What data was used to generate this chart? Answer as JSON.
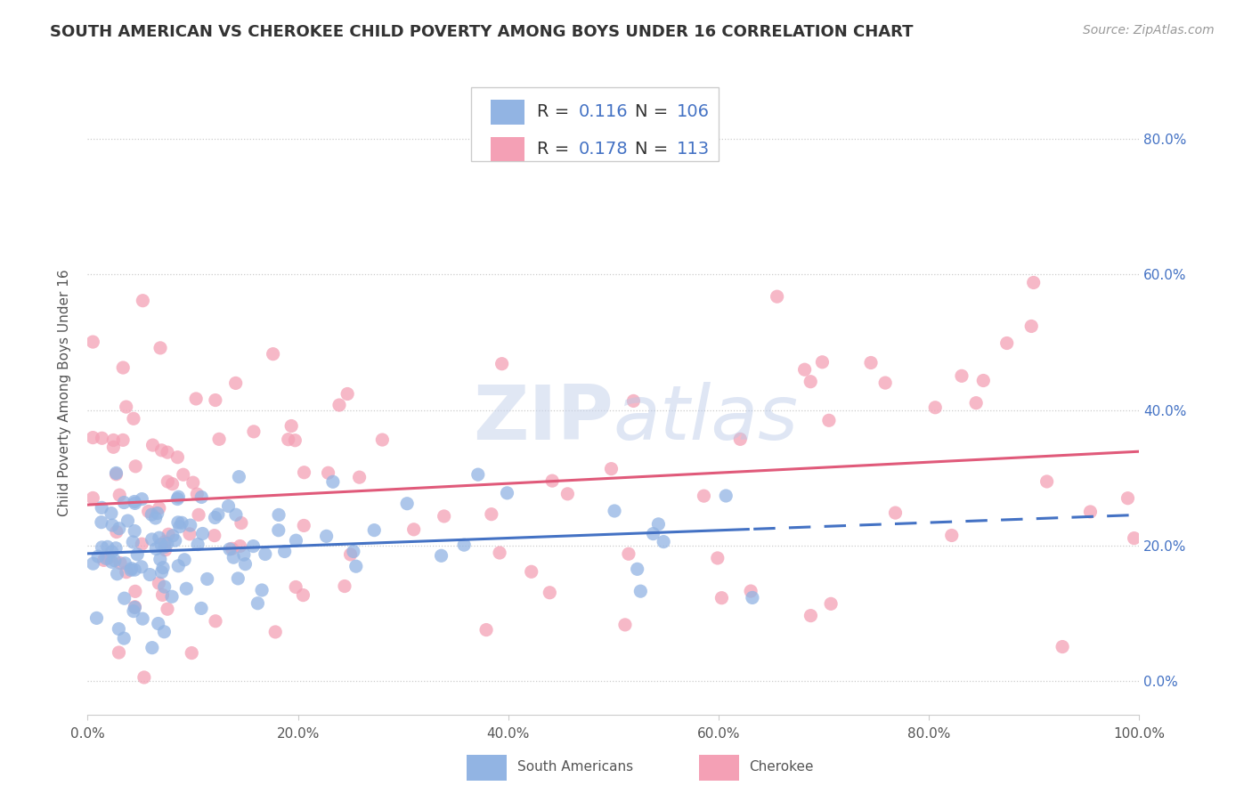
{
  "title": "SOUTH AMERICAN VS CHEROKEE CHILD POVERTY AMONG BOYS UNDER 16 CORRELATION CHART",
  "source": "Source: ZipAtlas.com",
  "ylabel": "Child Poverty Among Boys Under 16",
  "blue_R": 0.116,
  "blue_N": 106,
  "pink_R": 0.178,
  "pink_N": 113,
  "blue_color": "#92b4e3",
  "pink_color": "#f4a0b5",
  "blue_line_color": "#4472c4",
  "pink_line_color": "#e05a7a",
  "legend_label_blue": "South Americans",
  "legend_label_pink": "Cherokee",
  "xlim": [
    0.0,
    1.0
  ],
  "ylim": [
    -0.05,
    0.9
  ],
  "xtick_vals": [
    0.0,
    0.2,
    0.4,
    0.6,
    0.8,
    1.0
  ],
  "ytick_vals": [
    0.0,
    0.2,
    0.4,
    0.6,
    0.8
  ],
  "blue_seed": 42,
  "pink_seed": 77,
  "title_fontsize": 13,
  "source_fontsize": 10,
  "tick_fontsize": 11,
  "ylabel_fontsize": 11,
  "legend_fontsize": 14,
  "watermark_zip_color": "#c8d4ec",
  "watermark_atlas_color": "#b8c8e8",
  "grid_color": "#cccccc",
  "tick_color": "#555555",
  "right_tick_color": "#4472c4"
}
